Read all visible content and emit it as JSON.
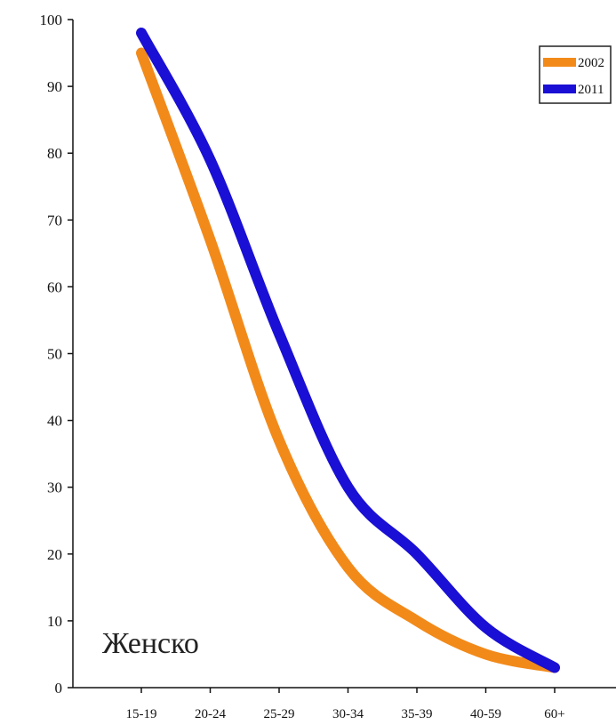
{
  "chart_data": {
    "type": "line",
    "title": "",
    "xlabel": "",
    "ylabel": "",
    "categories": [
      "15-19",
      "20-24",
      "25-29",
      "30-34",
      "35-39",
      "40-59",
      "60+"
    ],
    "ylim": [
      0,
      100
    ],
    "yticks": [
      "0",
      "10",
      "20",
      "30",
      "40",
      "50",
      "60",
      "70",
      "80",
      "90",
      "100"
    ],
    "grid": false,
    "legend_position": "top-right",
    "annotation": "Женско",
    "series": [
      {
        "name": "2002",
        "color": "#f28a1a",
        "values": [
          95,
          67,
          37,
          18,
          10,
          5,
          3
        ]
      },
      {
        "name": "2011",
        "color": "#1a0fd4",
        "values": [
          98,
          79,
          53,
          30,
          20,
          9,
          3
        ]
      }
    ]
  }
}
